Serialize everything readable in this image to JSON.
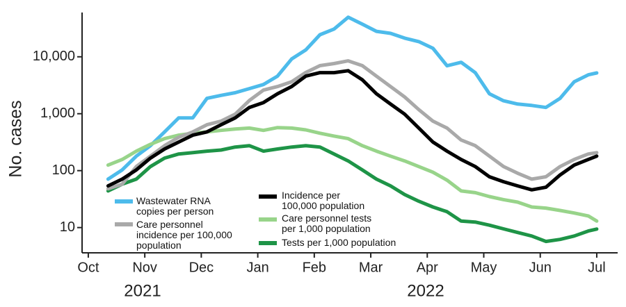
{
  "chart_data": {
    "type": "line",
    "y_label": "No. cases",
    "log_y": true,
    "legend": "lower left",
    "x": [
      0.35,
      0.6,
      0.85,
      1.1,
      1.35,
      1.6,
      1.85,
      2.1,
      2.35,
      2.6,
      2.85,
      3.1,
      3.35,
      3.6,
      3.85,
      4.1,
      4.35,
      4.6,
      4.85,
      5.1,
      5.35,
      5.6,
      5.85,
      6.1,
      6.35,
      6.6,
      6.85,
      7.1,
      7.35,
      7.6,
      7.85,
      8.1,
      8.35,
      8.6,
      8.85,
      9.0
    ],
    "xlim": [
      -0.11,
      9.37
    ],
    "xticks": [
      {
        "value": 0,
        "label": "Oct"
      },
      {
        "value": 1,
        "label": "Nov"
      },
      {
        "value": 2,
        "label": "Dec"
      },
      {
        "value": 3,
        "label": "Jan"
      },
      {
        "value": 4,
        "label": "Feb"
      },
      {
        "value": 5,
        "label": "Mar"
      },
      {
        "value": 6,
        "label": "Apr"
      },
      {
        "value": 7,
        "label": "May"
      },
      {
        "value": 8,
        "label": "Jun"
      },
      {
        "value": 9,
        "label": "Jul"
      }
    ],
    "years": [
      "2021",
      "2022"
    ],
    "ylim": [
      3.6,
      60000
    ],
    "yticks": [
      10,
      100,
      {
        "value": 1000,
        "label": "1,000"
      },
      {
        "value": 10000,
        "label": "10,000"
      }
    ],
    "series": [
      {
        "name": "Wastewater RNA\ncopies per person",
        "color": "#4dbbeb",
        "values": [
          71,
          103,
          180,
          275,
          480,
          845,
          845,
          1860,
          2100,
          2340,
          2760,
          3260,
          4570,
          9170,
          13200,
          24400,
          30700,
          49600,
          37500,
          28000,
          25800,
          21300,
          18500,
          14100,
          6960,
          8000,
          5260,
          2240,
          1690,
          1480,
          1400,
          1290,
          1860,
          3640,
          4820,
          5200
        ]
      },
      {
        "name": "Care personnel\nincidence per 100,000\npopulation",
        "color": "#a9a9a9",
        "values": [
          48,
          58,
          118,
          180,
          275,
          385,
          480,
          640,
          740,
          980,
          1700,
          2600,
          3000,
          3640,
          5300,
          7000,
          7600,
          8500,
          7000,
          4570,
          3000,
          1970,
          1180,
          740,
          560,
          345,
          275,
          180,
          118,
          90,
          71,
          78,
          118,
          157,
          196,
          207
        ]
      },
      {
        "name": "Incidence per\n100,000 population",
        "color": "#000000",
        "values": [
          54,
          71,
          103,
          166,
          240,
          318,
          420,
          480,
          640,
          845,
          1290,
          1570,
          2240,
          3000,
          4570,
          5260,
          5260,
          5700,
          3940,
          2240,
          1480,
          980,
          560,
          318,
          220,
          157,
          118,
          78,
          64,
          54,
          46,
          51,
          84,
          125,
          157,
          180
        ]
      },
      {
        "name": "Care personnel tests\nper 1,000 population",
        "color": "#98d48a",
        "values": [
          125,
          157,
          220,
          290,
          365,
          420,
          455,
          480,
          510,
          540,
          560,
          510,
          570,
          560,
          520,
          455,
          405,
          365,
          275,
          220,
          180,
          148,
          118,
          94,
          68,
          44,
          41,
          35,
          31,
          28,
          23,
          22,
          20,
          18,
          16,
          13
        ]
      },
      {
        "name": "Tests per 1,000 population",
        "color": "#1e9447",
        "values": [
          44,
          58,
          71,
          118,
          166,
          196,
          207,
          220,
          230,
          260,
          275,
          220,
          240,
          260,
          275,
          260,
          196,
          148,
          103,
          71,
          54,
          38,
          29,
          23,
          19,
          13,
          12.5,
          11,
          9.5,
          8.2,
          7.1,
          5.7,
          6.2,
          7.1,
          8.7,
          9.4
        ]
      }
    ]
  }
}
